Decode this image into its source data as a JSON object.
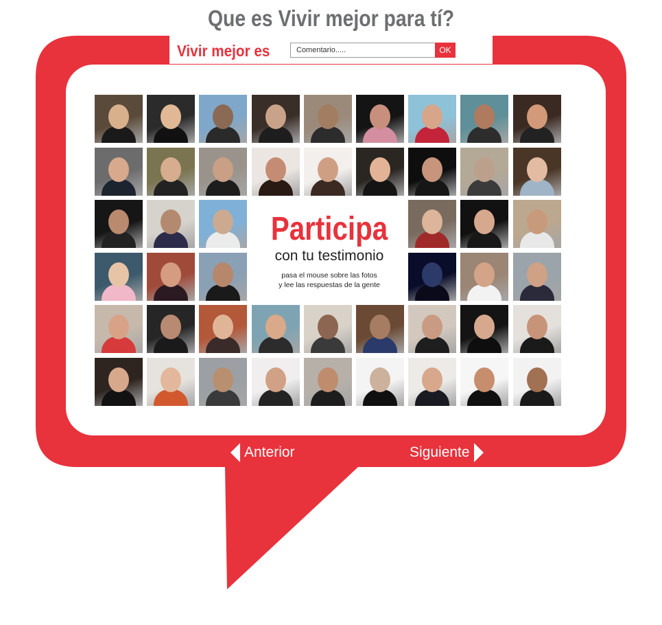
{
  "header": {
    "title": "Que es Vivir mejor para tí?",
    "prompt_label": "Vivir mejor es",
    "comment_placeholder": "Comentario.....",
    "submit_label": "OK"
  },
  "cta": {
    "headline": "Participa",
    "subline": "con tu testimonio",
    "hint_line1": "pasa el mouse sobre las fotos",
    "hint_line2": "y lee las respuestas de la gente"
  },
  "nav": {
    "prev_label": "Anterior",
    "next_label": "Siguiente"
  },
  "colors": {
    "accent": "#e8323c",
    "title_gray": "#6d6e71",
    "background": "#ffffff"
  },
  "gallery": {
    "columns": 9,
    "rows": 6,
    "center_block": {
      "from_col": 3,
      "to_col": 5,
      "from_row": 2,
      "to_row": 3
    },
    "photos": [
      {
        "bg": "#5a4a3a",
        "skin": "#d9b08c",
        "cloth": "#1a1a1a"
      },
      {
        "bg": "#2b2b2b",
        "skin": "#e0b896",
        "cloth": "#111111"
      },
      {
        "bg": "#7fa7c9",
        "skin": "#8a6a55",
        "cloth": "#2a2a2a"
      },
      {
        "bg": "#3a2e28",
        "skin": "#c9a389",
        "cloth": "#1e1e1e"
      },
      {
        "bg": "#9b8a7a",
        "skin": "#a27d61",
        "cloth": "#2c2c2c"
      },
      {
        "bg": "#141414",
        "skin": "#c78f7c",
        "cloth": "#d38ea0"
      },
      {
        "bg": "#8ec2d8",
        "skin": "#d6a58a",
        "cloth": "#c3243a"
      },
      {
        "bg": "#5f8f98",
        "skin": "#b07a5f",
        "cloth": "#2d2d2d"
      },
      {
        "bg": "#3b2a22",
        "skin": "#d29a78",
        "cloth": "#222222"
      },
      {
        "bg": "#6c6c6c",
        "skin": "#d8a98c",
        "cloth": "#1c2430"
      },
      {
        "bg": "#7a7450",
        "skin": "#d6ad8f",
        "cloth": "#222222"
      },
      {
        "bg": "#9a938c",
        "skin": "#c99f85",
        "cloth": "#1d1d1d"
      },
      {
        "bg": "#ece6e2",
        "skin": "#c48d73",
        "cloth": "#2a1a14"
      },
      {
        "bg": "#f2efec",
        "skin": "#cf9f84",
        "cloth": "#3a2a22"
      },
      {
        "bg": "#2a2622",
        "skin": "#e2b396",
        "cloth": "#141414"
      },
      {
        "bg": "#0e0e0e",
        "skin": "#c7957c",
        "cloth": "#161616"
      },
      {
        "bg": "#b4a896",
        "skin": "#bca08c",
        "cloth": "#3b3b3b"
      },
      {
        "bg": "#4a3626",
        "skin": "#e2bba2",
        "cloth": "#a0b4c8"
      },
      {
        "bg": "#161616",
        "skin": "#b98a6e",
        "cloth": "#222222"
      },
      {
        "bg": "#d6d2cc",
        "skin": "#b38a70",
        "cloth": "#2c2c4a"
      },
      {
        "bg": "#7fb0d8",
        "skin": "#ccaa90",
        "cloth": "#ebebeb"
      },
      {
        "bg": "#7a6b5f",
        "skin": "#dcb59a",
        "cloth": "#a02a2a"
      },
      {
        "bg": "#111111",
        "skin": "#d6a88d",
        "cloth": "#181818"
      },
      {
        "bg": "#bca78f",
        "skin": "#c89a7c",
        "cloth": "#e8e8e8"
      },
      {
        "bg": "#3c5a6c",
        "skin": "#e8c4a6",
        "cloth": "#f0b8c8"
      },
      {
        "bg": "#a04a3a",
        "skin": "#d49c80",
        "cloth": "#2b1a22"
      },
      {
        "bg": "#8aa0b4",
        "skin": "#b7876c",
        "cloth": "#1a1a1a"
      },
      {
        "bg": "#0a0d2a",
        "skin": "#2c3a6a",
        "cloth": "#0a0a1a"
      },
      {
        "bg": "#9b8574",
        "skin": "#d4a488",
        "cloth": "#f2f2f2"
      },
      {
        "bg": "#9aa4aa",
        "skin": "#cfa185",
        "cloth": "#2a2a3a"
      },
      {
        "bg": "#c6b9ac",
        "skin": "#d8a287",
        "cloth": "#d63a3a"
      },
      {
        "bg": "#262626",
        "skin": "#b98a72",
        "cloth": "#1a1a1a"
      },
      {
        "bg": "#b4583a",
        "skin": "#e0b497",
        "cloth": "#3a2a2a"
      },
      {
        "bg": "#7ea4b4",
        "skin": "#d9a989",
        "cloth": "#2c2c2c"
      },
      {
        "bg": "#d9d2c8",
        "skin": "#8c6650",
        "cloth": "#3a3a3a"
      },
      {
        "bg": "#6a4a34",
        "skin": "#a67d62",
        "cloth": "#2a3a6a"
      },
      {
        "bg": "#d2c8be",
        "skin": "#c99b82",
        "cloth": "#1e1e1e"
      },
      {
        "bg": "#141414",
        "skin": "#d6a98f",
        "cloth": "#0e0e0e"
      },
      {
        "bg": "#e4e0dc",
        "skin": "#c79479",
        "cloth": "#1a1a1a"
      },
      {
        "bg": "#2e2420",
        "skin": "#d8a88c",
        "cloth": "#121212"
      },
      {
        "bg": "#e6e2de",
        "skin": "#e3b79b",
        "cloth": "#d2592e"
      },
      {
        "bg": "#9ca0a4",
        "skin": "#b8906f",
        "cloth": "#3a3a3a"
      },
      {
        "bg": "#f0eeee",
        "skin": "#d1a186",
        "cloth": "#242424"
      },
      {
        "bg": "#b6b0a8",
        "skin": "#c08c6e",
        "cloth": "#1d1d1d"
      },
      {
        "bg": "#f4f4f4",
        "skin": "#ccb29c",
        "cloth": "#101010"
      },
      {
        "bg": "#ecebe8",
        "skin": "#d7a88c",
        "cloth": "#1a1a22"
      },
      {
        "bg": "#f6f6f6",
        "skin": "#c78e6e",
        "cloth": "#101010"
      },
      {
        "bg": "#f2f2f2",
        "skin": "#a27052",
        "cloth": "#1a1a1a"
      }
    ]
  }
}
